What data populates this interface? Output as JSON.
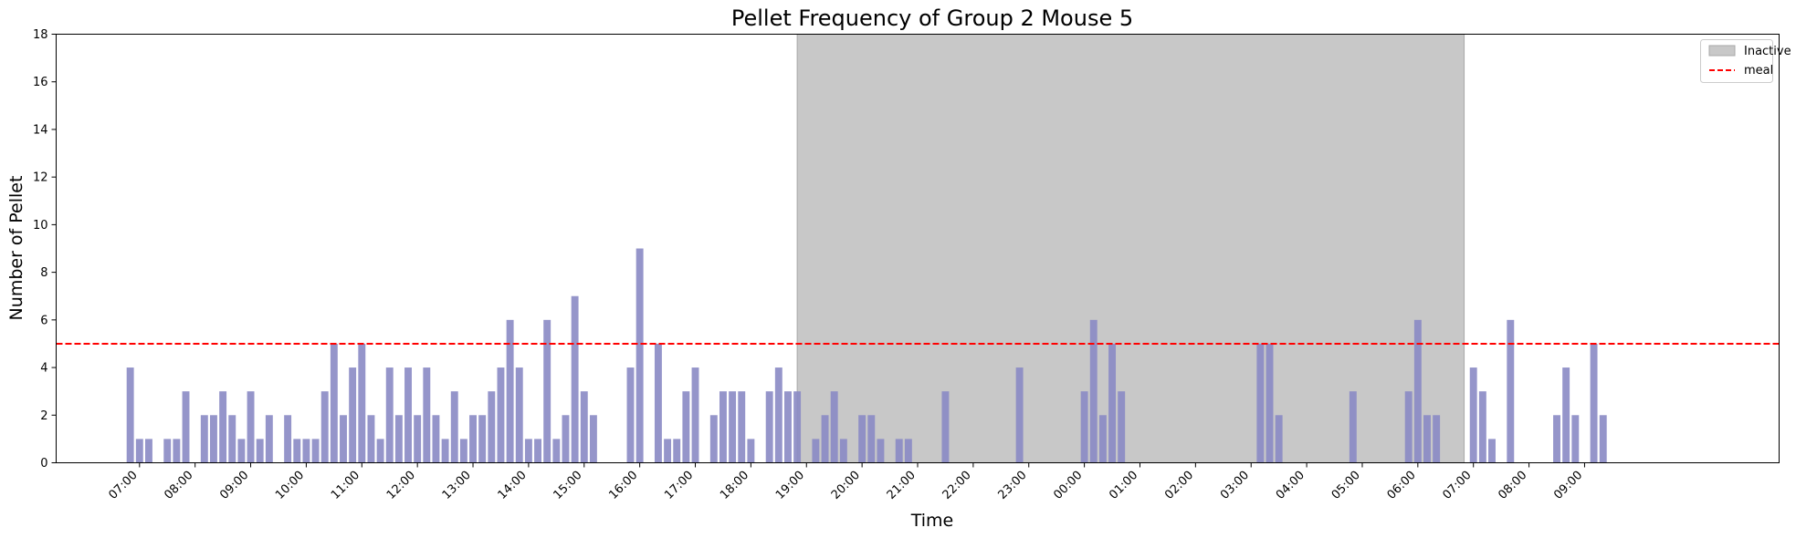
{
  "chart_data": {
    "type": "bar",
    "title": "Pellet Frequency of Group 2 Mouse 5",
    "xlabel": "Time",
    "ylabel": "Number of Pellet",
    "ylim": [
      0,
      18
    ],
    "yticks": [
      0,
      2,
      4,
      6,
      8,
      10,
      12,
      14,
      16,
      18
    ],
    "xrange": [
      "05:30",
      "36:30"
    ],
    "xticks": [
      "07:00",
      "08:00",
      "09:00",
      "10:00",
      "11:00",
      "12:00",
      "13:00",
      "14:00",
      "15:00",
      "16:00",
      "17:00",
      "18:00",
      "19:00",
      "20:00",
      "21:00",
      "22:00",
      "23:00",
      "00:00",
      "01:00",
      "02:00",
      "03:00",
      "04:00",
      "05:00",
      "06:00",
      "07:00",
      "08:00",
      "09:00"
    ],
    "bar_color": "#8a8ac4",
    "grid": false,
    "inactive_region": {
      "start": "18:50",
      "end": "06:50",
      "color": "#c8c8c8",
      "label": "Inactive"
    },
    "meal_threshold": {
      "value": 5,
      "color": "#ff0000",
      "style": "dashed",
      "label": "meal"
    },
    "legend": {
      "position": "top-right",
      "entries": [
        "Inactive",
        "meal"
      ]
    },
    "bars": [
      {
        "x": "06:50",
        "y": 4
      },
      {
        "x": "07:00",
        "y": 1
      },
      {
        "x": "07:10",
        "y": 1
      },
      {
        "x": "07:30",
        "y": 1
      },
      {
        "x": "07:40",
        "y": 1
      },
      {
        "x": "07:50",
        "y": 3
      },
      {
        "x": "08:10",
        "y": 2
      },
      {
        "x": "08:20",
        "y": 2
      },
      {
        "x": "08:30",
        "y": 3
      },
      {
        "x": "08:40",
        "y": 2
      },
      {
        "x": "08:50",
        "y": 1
      },
      {
        "x": "09:00",
        "y": 3
      },
      {
        "x": "09:10",
        "y": 1
      },
      {
        "x": "09:20",
        "y": 2
      },
      {
        "x": "09:40",
        "y": 2
      },
      {
        "x": "09:50",
        "y": 1
      },
      {
        "x": "10:00",
        "y": 1
      },
      {
        "x": "10:10",
        "y": 1
      },
      {
        "x": "10:20",
        "y": 3
      },
      {
        "x": "10:30",
        "y": 5
      },
      {
        "x": "10:40",
        "y": 2
      },
      {
        "x": "10:50",
        "y": 4
      },
      {
        "x": "11:00",
        "y": 5
      },
      {
        "x": "11:10",
        "y": 2
      },
      {
        "x": "11:20",
        "y": 1
      },
      {
        "x": "11:30",
        "y": 4
      },
      {
        "x": "11:40",
        "y": 2
      },
      {
        "x": "11:50",
        "y": 4
      },
      {
        "x": "12:00",
        "y": 2
      },
      {
        "x": "12:10",
        "y": 4
      },
      {
        "x": "12:20",
        "y": 2
      },
      {
        "x": "12:30",
        "y": 1
      },
      {
        "x": "12:40",
        "y": 3
      },
      {
        "x": "12:50",
        "y": 1
      },
      {
        "x": "13:00",
        "y": 2
      },
      {
        "x": "13:10",
        "y": 2
      },
      {
        "x": "13:20",
        "y": 3
      },
      {
        "x": "13:30",
        "y": 4
      },
      {
        "x": "13:40",
        "y": 6
      },
      {
        "x": "13:50",
        "y": 4
      },
      {
        "x": "14:00",
        "y": 1
      },
      {
        "x": "14:10",
        "y": 1
      },
      {
        "x": "14:20",
        "y": 6
      },
      {
        "x": "14:30",
        "y": 1
      },
      {
        "x": "14:40",
        "y": 2
      },
      {
        "x": "14:50",
        "y": 7
      },
      {
        "x": "15:00",
        "y": 3
      },
      {
        "x": "15:10",
        "y": 2
      },
      {
        "x": "15:50",
        "y": 4
      },
      {
        "x": "16:00",
        "y": 9
      },
      {
        "x": "16:20",
        "y": 5
      },
      {
        "x": "16:30",
        "y": 1
      },
      {
        "x": "16:40",
        "y": 1
      },
      {
        "x": "16:50",
        "y": 3
      },
      {
        "x": "17:00",
        "y": 4
      },
      {
        "x": "17:20",
        "y": 2
      },
      {
        "x": "17:30",
        "y": 3
      },
      {
        "x": "17:40",
        "y": 3
      },
      {
        "x": "17:50",
        "y": 3
      },
      {
        "x": "18:00",
        "y": 1
      },
      {
        "x": "18:20",
        "y": 3
      },
      {
        "x": "18:30",
        "y": 4
      },
      {
        "x": "18:40",
        "y": 3
      },
      {
        "x": "18:50",
        "y": 3
      },
      {
        "x": "19:10",
        "y": 1
      },
      {
        "x": "19:20",
        "y": 2
      },
      {
        "x": "19:30",
        "y": 3
      },
      {
        "x": "19:40",
        "y": 1
      },
      {
        "x": "20:00",
        "y": 2
      },
      {
        "x": "20:10",
        "y": 2
      },
      {
        "x": "20:20",
        "y": 1
      },
      {
        "x": "20:40",
        "y": 1
      },
      {
        "x": "20:50",
        "y": 1
      },
      {
        "x": "21:30",
        "y": 3
      },
      {
        "x": "22:50",
        "y": 4
      },
      {
        "x": "00:00",
        "y": 3
      },
      {
        "x": "00:10",
        "y": 6
      },
      {
        "x": "00:20",
        "y": 2
      },
      {
        "x": "00:30",
        "y": 5
      },
      {
        "x": "00:40",
        "y": 3
      },
      {
        "x": "03:10",
        "y": 5
      },
      {
        "x": "03:20",
        "y": 5
      },
      {
        "x": "03:30",
        "y": 2
      },
      {
        "x": "04:50",
        "y": 3
      },
      {
        "x": "05:50",
        "y": 3
      },
      {
        "x": "06:00",
        "y": 6
      },
      {
        "x": "06:10",
        "y": 2
      },
      {
        "x": "06:20",
        "y": 2
      },
      {
        "x": "07:00",
        "y": 4
      },
      {
        "x": "07:10",
        "y": 3
      },
      {
        "x": "07:20",
        "y": 1
      },
      {
        "x": "07:40",
        "y": 6
      },
      {
        "x": "08:30",
        "y": 2
      },
      {
        "x": "08:40",
        "y": 4
      },
      {
        "x": "08:50",
        "y": 2
      },
      {
        "x": "09:10",
        "y": 5
      },
      {
        "x": "09:20",
        "y": 2
      }
    ]
  }
}
